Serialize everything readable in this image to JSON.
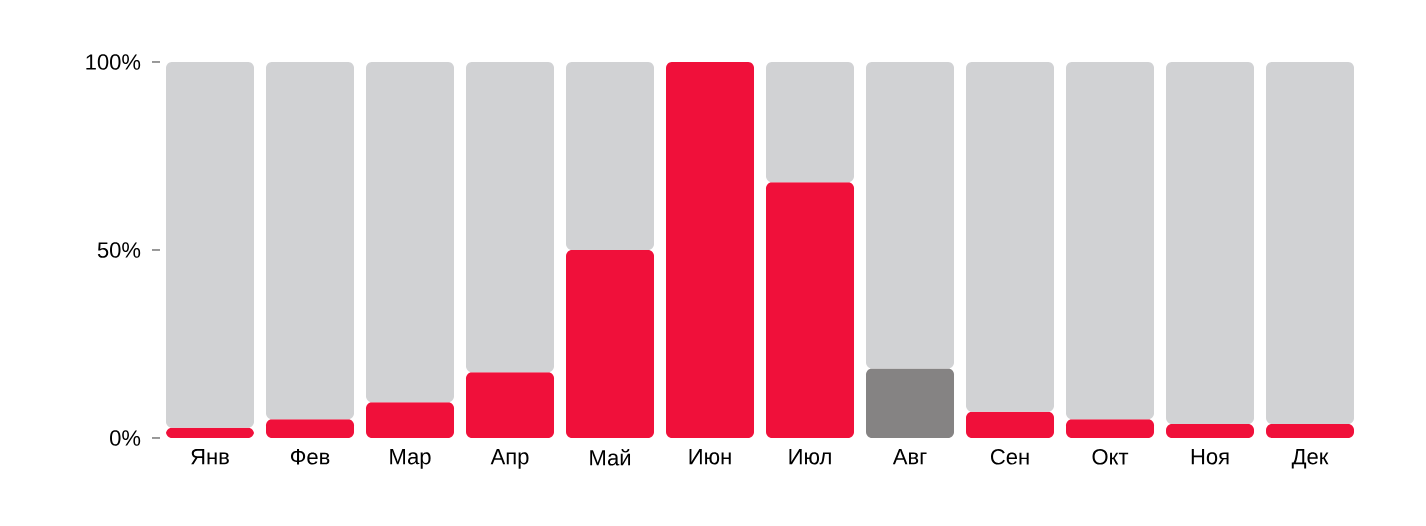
{
  "chart_data": {
    "type": "bar",
    "stacked": true,
    "categories": [
      "Янв",
      "Фев",
      "Мар",
      "Апр",
      "Май",
      "Июн",
      "Июл",
      "Авг",
      "Сен",
      "Окт",
      "Ноя",
      "Дек"
    ],
    "series": [
      {
        "colors": [
          "#f0103a",
          "#f0103a",
          "#f0103a",
          "#f0103a",
          "#f0103a",
          "#f0103a",
          "#f0103a",
          "#858383",
          "#f0103a",
          "#f0103a",
          "#f0103a",
          "#f0103a"
        ],
        "values": [
          2.7,
          5,
          9.5,
          17.5,
          50,
          100,
          68,
          18.5,
          7,
          5,
          3.7,
          3.7
        ]
      },
      {
        "color": "#d1d2d4",
        "values": [
          97.3,
          95,
          90.5,
          82.5,
          50,
          0,
          32,
          81.5,
          93,
          95,
          96.3,
          96.3
        ]
      }
    ],
    "ylim": [
      0,
      100
    ],
    "yticks": [
      {
        "value": 0,
        "label": "0%"
      },
      {
        "value": 50,
        "label": "50%"
      },
      {
        "value": 100,
        "label": "100%"
      }
    ],
    "grid": false
  }
}
